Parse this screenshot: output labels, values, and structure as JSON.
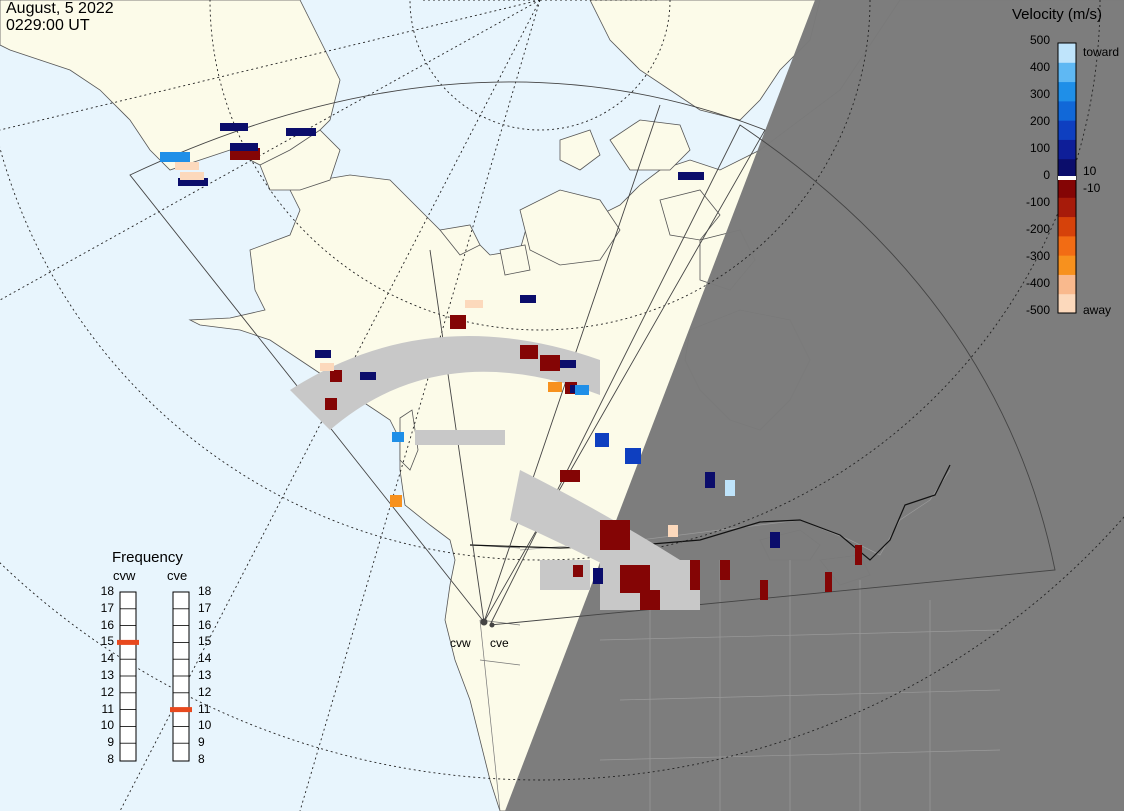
{
  "header": {
    "date": "August, 5 2022",
    "time": "0229:00 UT"
  },
  "velocity_legend": {
    "title": "Velocity (m/s)",
    "ticks": [
      "500",
      "400",
      "300",
      "200",
      "100",
      "0",
      "-100",
      "-200",
      "-300",
      "-400",
      "-500"
    ],
    "threshold_labels": [
      "10",
      "-10"
    ],
    "toward_label": "toward",
    "away_label": "away",
    "colors": [
      "#fcd9bc",
      "#f9b98d",
      "#f7911e",
      "#f26c14",
      "#d6420a",
      "#a71b0a",
      "#840505",
      "#0b0d6b",
      "#0e1e98",
      "#0e3fc0",
      "#1168d8",
      "#1f8fe8",
      "#5fb8f3",
      "#bfe4fb"
    ]
  },
  "frequency_legend": {
    "title": "Frequency",
    "radars": [
      {
        "name": "cvw",
        "freq_mhz": 15
      },
      {
        "name": "cve",
        "freq_mhz": 11
      }
    ],
    "ticks": [
      "18",
      "17",
      "16",
      "15",
      "14",
      "13",
      "12",
      "11",
      "10",
      "9",
      "8"
    ],
    "marker_color": "#e8491e"
  },
  "map_labels": {
    "radar_west": "cvw",
    "radar_east": "cve"
  },
  "colors": {
    "ocean": "#e8f5fd",
    "land": "#fcfbe9",
    "night": "#7a7a7a",
    "ground_scatter": "#c8c8c8"
  }
}
